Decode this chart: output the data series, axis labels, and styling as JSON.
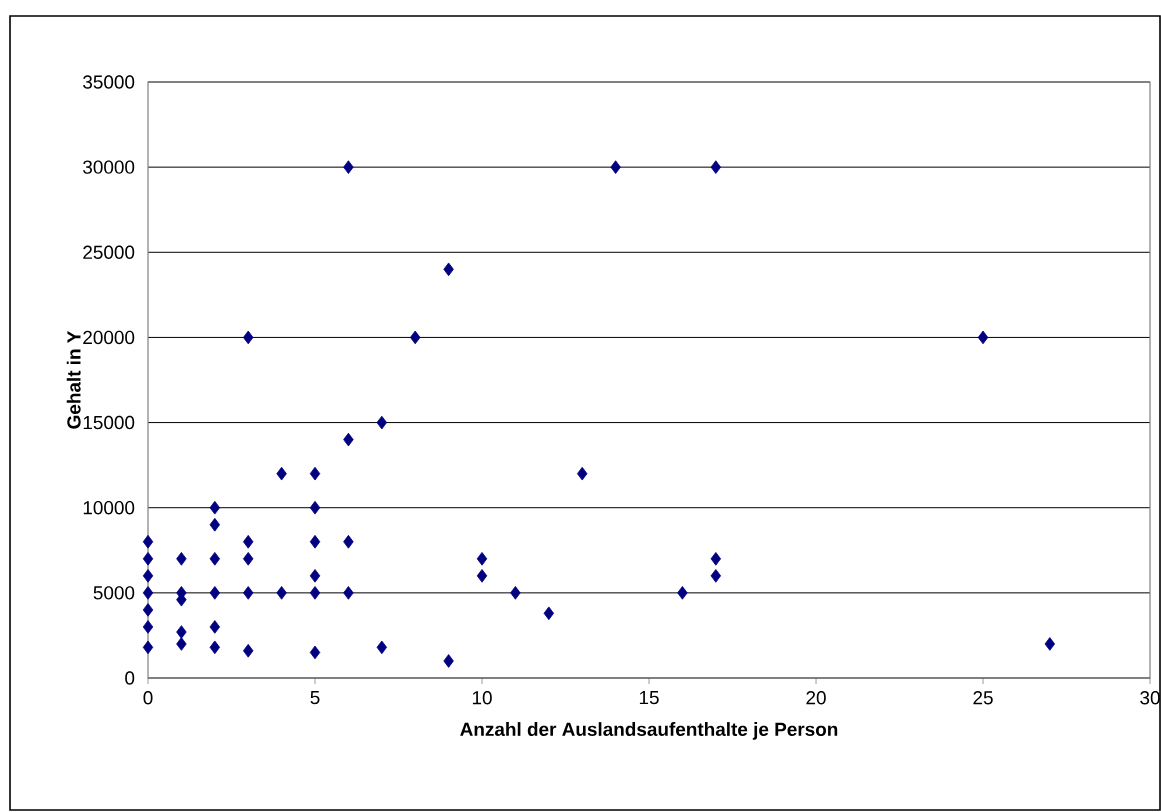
{
  "chart_data": {
    "type": "scatter",
    "xlabel": "Anzahl der Auslandsaufenthalte je Person",
    "ylabel": "Gehalt in Y",
    "x": [
      0,
      0,
      0,
      0,
      0,
      0,
      0,
      1,
      1,
      1,
      1,
      1,
      2,
      2,
      2,
      2,
      2,
      2,
      3,
      3,
      3,
      3,
      3,
      4,
      4,
      5,
      5,
      5,
      5,
      5,
      5,
      6,
      6,
      6,
      6,
      7,
      7,
      8,
      9,
      9,
      10,
      10,
      11,
      12,
      13,
      14,
      16,
      17,
      17,
      17,
      25,
      27
    ],
    "values": [
      8000,
      7000,
      6000,
      5000,
      4000,
      3000,
      1800,
      7000,
      5000,
      4600,
      2700,
      2000,
      10000,
      9000,
      7000,
      5000,
      3000,
      1800,
      20000,
      8000,
      7000,
      5000,
      1600,
      12000,
      5000,
      12000,
      10000,
      8000,
      6000,
      5000,
      1500,
      30000,
      14000,
      8000,
      5000,
      15000,
      1800,
      20000,
      24000,
      1000,
      7000,
      6000,
      5000,
      3800,
      12000,
      30000,
      5000,
      30000,
      7000,
      6000,
      20000,
      2000
    ],
    "color": "#000080",
    "marker": "diamond",
    "grid": "y",
    "xlim": [
      0,
      30
    ],
    "xticks": [
      0,
      5,
      10,
      15,
      20,
      25,
      30
    ],
    "ylim": [
      0,
      35000
    ],
    "yticks": [
      0,
      5000,
      10000,
      15000,
      20000,
      25000,
      30000,
      35000
    ]
  }
}
